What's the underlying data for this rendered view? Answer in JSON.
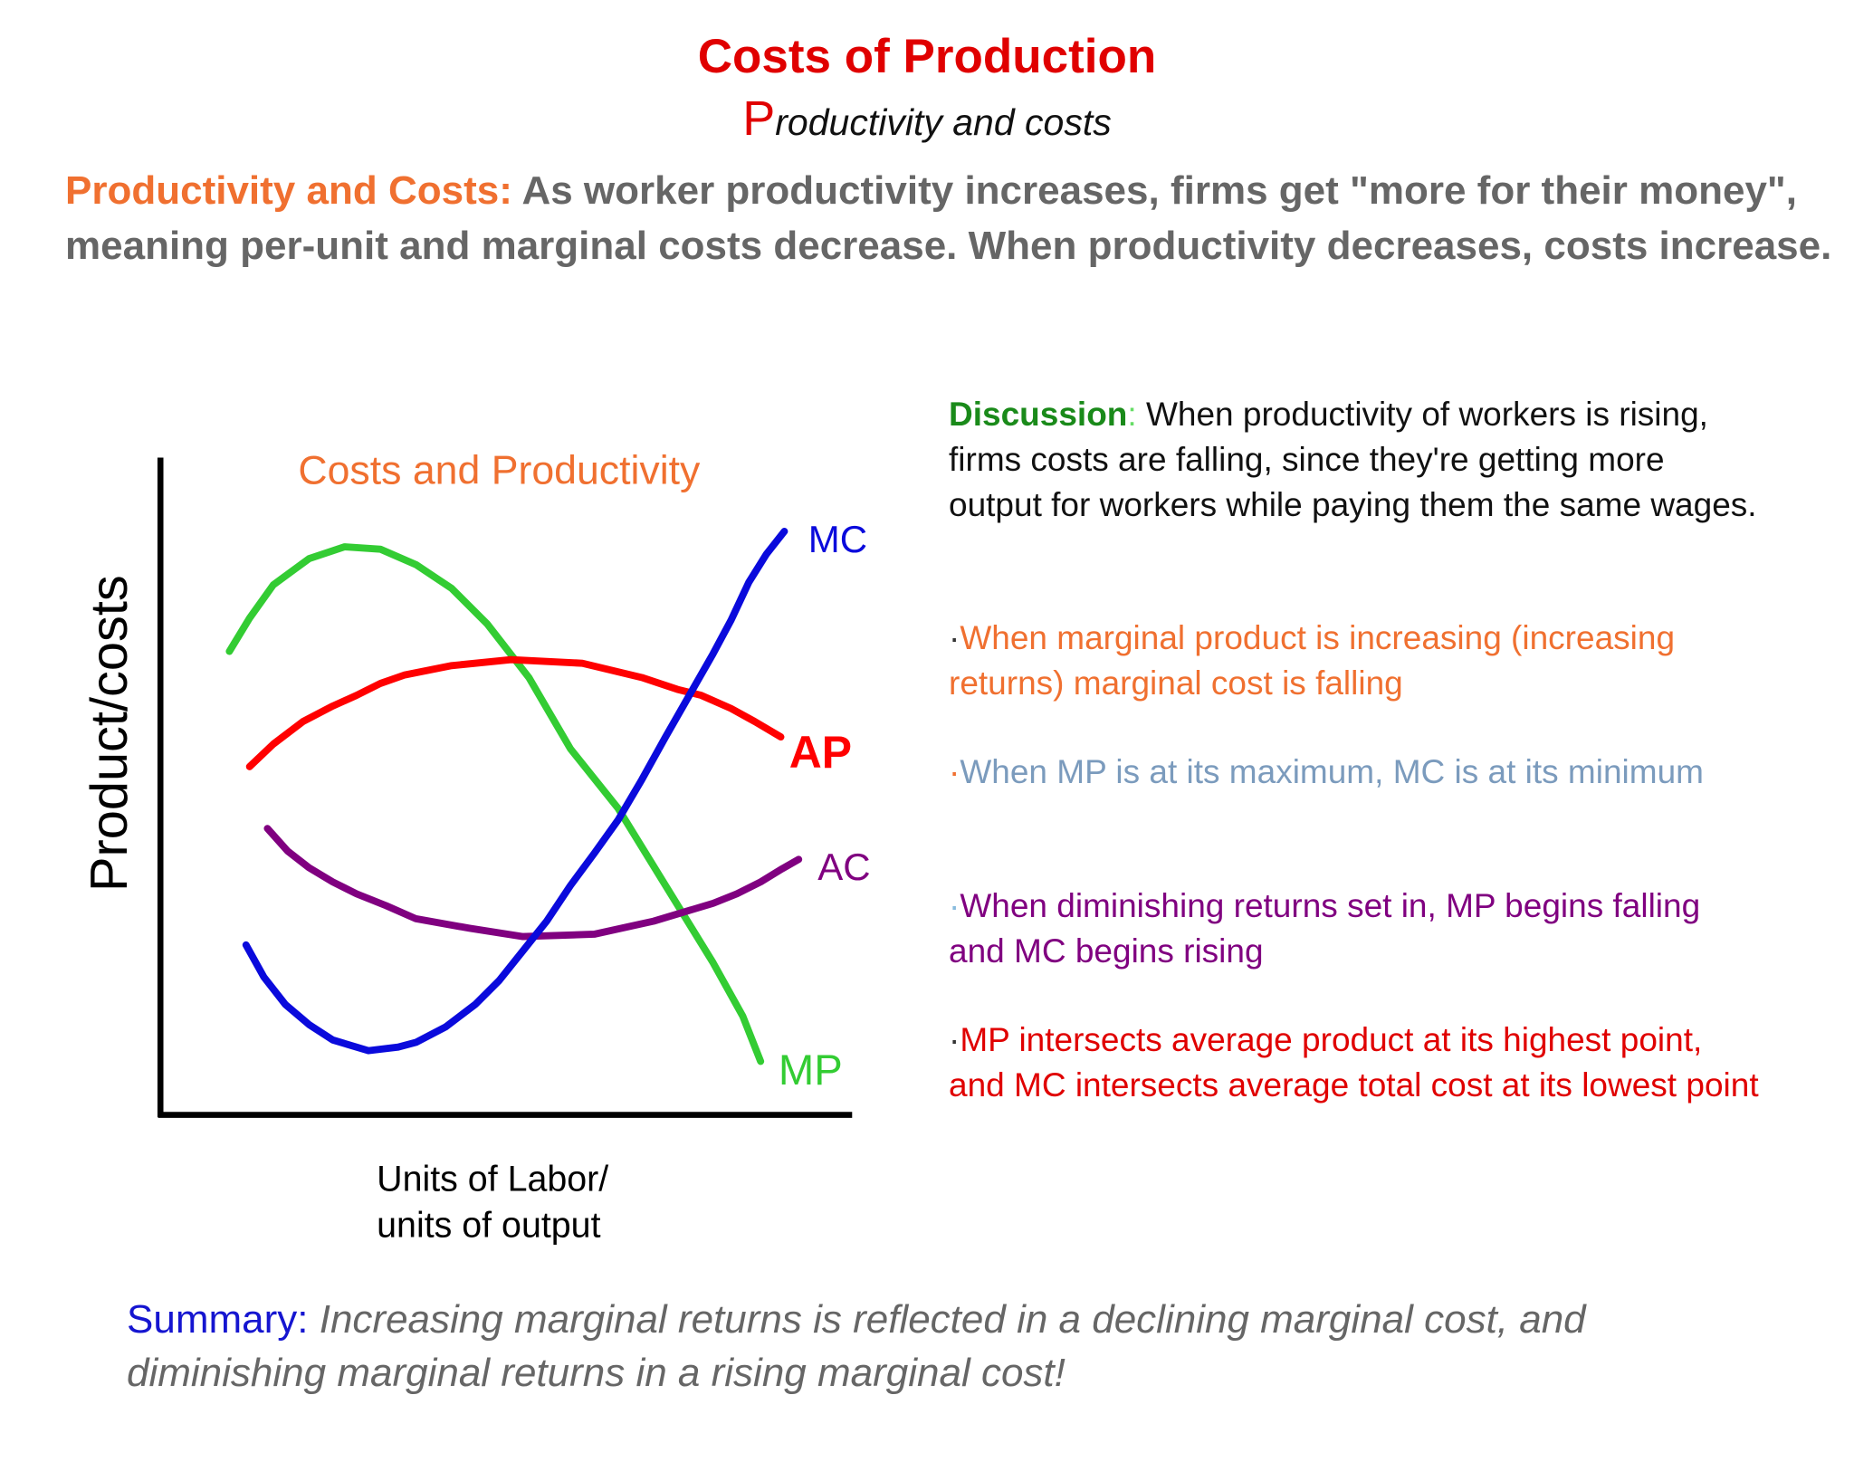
{
  "header": {
    "title": "Costs of Production",
    "subtitle_initial": "P",
    "subtitle_rest": "roductivity and costs"
  },
  "intro": {
    "label": "Productivity and Costs:",
    "text": "As worker productivity increases, firms get \"more for their money\", meaning per-unit and marginal costs decrease. When productivity decreases, costs increase."
  },
  "diagram": {
    "title": "Costs and Productivity",
    "y_label": "Product/costs",
    "x_label": [
      "Units of Labor/",
      "units of output"
    ],
    "curves": {
      "mc": "MC",
      "ap": "AP",
      "ac": "AC",
      "mp": "MP"
    }
  },
  "discussion": {
    "label": "Discussion",
    "colon": ":",
    "text": "When productivity of workers is rising, firms costs are falling, since they're getting more output for workers while paying them the same wages.",
    "points": [
      {
        "bullet": "·",
        "text": "When marginal product is increasing (increasing returns) marginal cost  is falling"
      },
      {
        "bullet": "·",
        "text": "When MP is at its maximum, MC is at its minimum"
      },
      {
        "bullet": "·",
        "text": "When diminishing returns set in, MP begins falling and MC begins rising"
      },
      {
        "bullet": "·",
        "text": "MP intersects average product at its highest point, and MC intersects average total cost at its lowest point"
      }
    ]
  },
  "summary": {
    "label": "Summary:",
    "text": "Increasing marginal returns is reflected in a declining marginal cost, and diminishing marginal returns in a rising marginal cost!"
  }
}
